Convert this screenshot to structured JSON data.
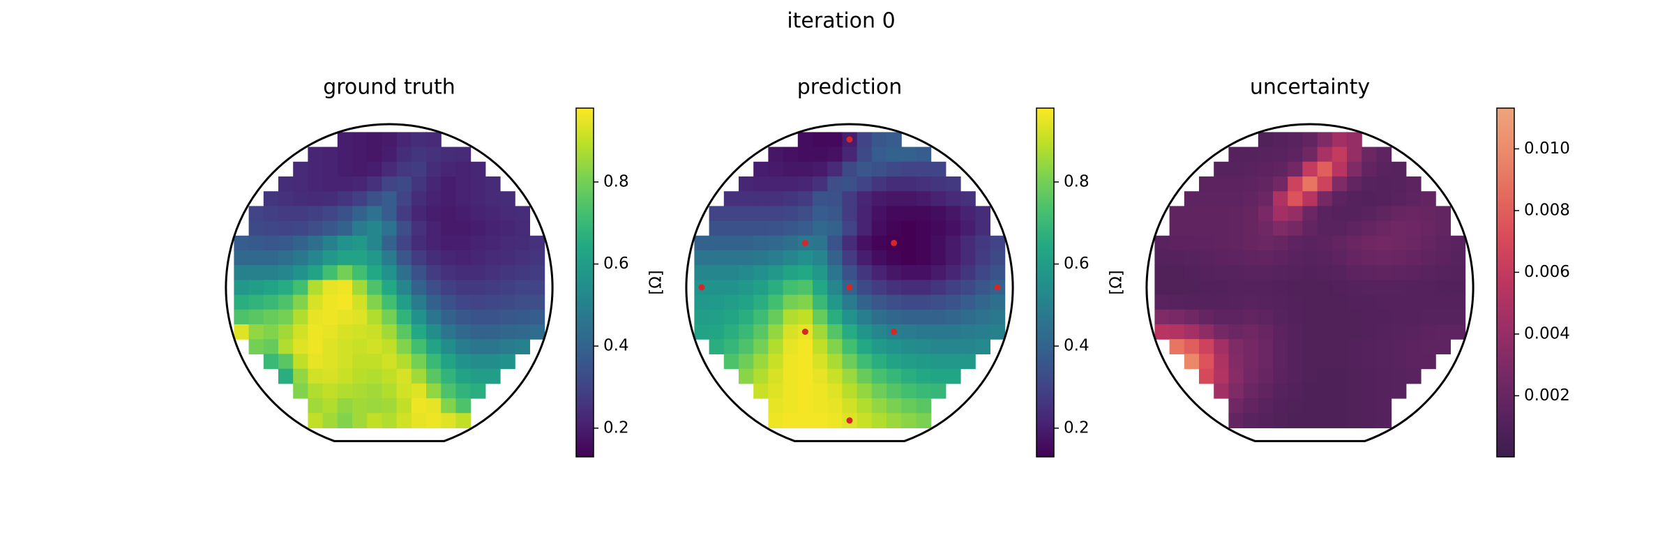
{
  "title": "iteration 0",
  "chart_data": [
    {
      "type": "heatmap",
      "title": "ground truth",
      "colorbar_label": "[Ω]",
      "colormap": [
        "#440154",
        "#482475",
        "#414487",
        "#355f8d",
        "#2a788e",
        "#21918c",
        "#22a884",
        "#44bf70",
        "#7ad151",
        "#bddf26",
        "#fde725"
      ],
      "clim": [
        0.13,
        0.98
      ],
      "cticks": [
        0.2,
        0.4,
        0.6,
        0.8
      ],
      "values": [
        [
          0.2,
          0.19,
          0.18,
          0.19,
          0.22,
          0.24,
          0.23
        ],
        [
          0.22,
          0.21,
          0.2,
          0.19,
          0.18,
          0.2,
          0.24,
          0.26,
          0.25,
          0.24,
          0.23
        ],
        [
          0.23,
          0.22,
          0.21,
          0.2,
          0.19,
          0.2,
          0.23,
          0.27,
          0.28,
          0.24,
          0.22,
          0.21,
          0.22
        ],
        [
          0.24,
          0.23,
          0.22,
          0.21,
          0.21,
          0.22,
          0.25,
          0.3,
          0.32,
          0.26,
          0.22,
          0.2,
          0.21,
          0.22,
          0.23
        ],
        [
          0.26,
          0.25,
          0.24,
          0.23,
          0.24,
          0.26,
          0.29,
          0.34,
          0.38,
          0.3,
          0.24,
          0.21,
          0.2,
          0.21,
          0.22,
          0.23,
          0.24
        ],
        [
          0.3,
          0.29,
          0.28,
          0.28,
          0.29,
          0.31,
          0.34,
          0.4,
          0.45,
          0.38,
          0.28,
          0.22,
          0.2,
          0.19,
          0.2,
          0.21,
          0.22,
          0.23,
          0.24
        ],
        [
          0.32,
          0.31,
          0.3,
          0.31,
          0.33,
          0.36,
          0.4,
          0.48,
          0.52,
          0.45,
          0.33,
          0.25,
          0.21,
          0.19,
          0.19,
          0.2,
          0.21,
          0.22,
          0.23
        ],
        [
          0.38,
          0.37,
          0.36,
          0.37,
          0.4,
          0.44,
          0.5,
          0.56,
          0.58,
          0.52,
          0.4,
          0.3,
          0.24,
          0.21,
          0.2,
          0.2,
          0.21,
          0.22,
          0.23,
          0.24,
          0.25
        ],
        [
          0.42,
          0.42,
          0.42,
          0.44,
          0.47,
          0.52,
          0.58,
          0.62,
          0.62,
          0.58,
          0.48,
          0.36,
          0.28,
          0.24,
          0.22,
          0.21,
          0.22,
          0.23,
          0.24,
          0.25,
          0.26
        ],
        [
          0.5,
          0.5,
          0.5,
          0.52,
          0.56,
          0.62,
          0.72,
          0.8,
          0.72,
          0.64,
          0.56,
          0.44,
          0.34,
          0.28,
          0.25,
          0.24,
          0.24,
          0.25,
          0.26,
          0.27,
          0.28
        ],
        [
          0.58,
          0.6,
          0.62,
          0.65,
          0.72,
          0.88,
          0.95,
          0.96,
          0.86,
          0.74,
          0.64,
          0.52,
          0.4,
          0.33,
          0.29,
          0.27,
          0.27,
          0.28,
          0.29,
          0.3,
          0.3
        ],
        [
          0.66,
          0.68,
          0.7,
          0.74,
          0.82,
          0.93,
          0.96,
          0.97,
          0.92,
          0.82,
          0.72,
          0.6,
          0.48,
          0.39,
          0.34,
          0.31,
          0.3,
          0.31,
          0.32,
          0.33,
          0.33
        ],
        [
          0.74,
          0.76,
          0.78,
          0.8,
          0.88,
          0.95,
          0.96,
          0.95,
          0.94,
          0.88,
          0.8,
          0.68,
          0.56,
          0.46,
          0.4,
          0.36,
          0.35,
          0.35,
          0.36,
          0.37,
          0.38
        ],
        [
          0.94,
          0.84,
          0.82,
          0.86,
          0.92,
          0.96,
          0.95,
          0.93,
          0.92,
          0.91,
          0.86,
          0.76,
          0.64,
          0.54,
          0.46,
          0.42,
          0.4,
          0.4,
          0.41,
          0.42,
          0.43
        ],
        [
          0.8,
          0.78,
          0.88,
          0.94,
          0.96,
          0.94,
          0.92,
          0.91,
          0.92,
          0.9,
          0.82,
          0.72,
          0.62,
          0.54,
          0.48,
          0.46,
          0.46,
          0.48,
          0.5
        ],
        [
          0.7,
          0.76,
          0.9,
          0.95,
          0.94,
          0.92,
          0.9,
          0.9,
          0.92,
          0.88,
          0.8,
          0.7,
          0.62,
          0.56,
          0.54,
          0.54,
          0.56
        ],
        [
          0.66,
          0.84,
          0.92,
          0.93,
          0.91,
          0.89,
          0.88,
          0.9,
          0.93,
          0.86,
          0.76,
          0.68,
          0.62,
          0.6,
          0.6
        ],
        [
          0.82,
          0.88,
          0.9,
          0.88,
          0.87,
          0.86,
          0.88,
          0.92,
          0.94,
          0.84,
          0.74,
          0.68,
          0.66
        ],
        [
          0.86,
          0.88,
          0.84,
          0.86,
          0.85,
          0.86,
          0.9,
          0.96,
          0.95,
          0.82,
          0.74
        ],
        [
          0.9,
          0.86,
          0.82,
          0.86,
          0.9,
          0.88,
          0.92,
          0.95,
          0.96,
          0.94,
          0.9
        ]
      ]
    },
    {
      "type": "heatmap",
      "title": "prediction",
      "colorbar_label": "[Ω]",
      "colormap": [
        "#440154",
        "#482475",
        "#414487",
        "#355f8d",
        "#2a788e",
        "#21918c",
        "#22a884",
        "#44bf70",
        "#7ad151",
        "#bddf26",
        "#fde725"
      ],
      "clim": [
        0.13,
        0.98
      ],
      "cticks": [
        0.2,
        0.4,
        0.6,
        0.8
      ],
      "samples": {
        "x": [
          0,
          -3,
          3,
          -10,
          0,
          10,
          -3,
          3,
          0
        ],
        "y": [
          10,
          3,
          3,
          0,
          0,
          0,
          -3,
          -3,
          -9
        ],
        "color": "#d62728"
      },
      "values": [
        [
          0.16,
          0.15,
          0.15,
          0.2,
          0.3,
          0.36,
          0.38
        ],
        [
          0.18,
          0.17,
          0.16,
          0.16,
          0.17,
          0.22,
          0.32,
          0.38,
          0.4,
          0.4,
          0.38
        ],
        [
          0.2,
          0.19,
          0.18,
          0.18,
          0.19,
          0.23,
          0.32,
          0.36,
          0.34,
          0.32,
          0.3,
          0.3,
          0.3
        ],
        [
          0.22,
          0.21,
          0.21,
          0.21,
          0.22,
          0.25,
          0.33,
          0.34,
          0.3,
          0.26,
          0.24,
          0.24,
          0.25,
          0.26,
          0.27
        ],
        [
          0.25,
          0.25,
          0.25,
          0.25,
          0.26,
          0.28,
          0.35,
          0.34,
          0.28,
          0.22,
          0.19,
          0.18,
          0.18,
          0.19,
          0.21,
          0.23,
          0.25
        ],
        [
          0.3,
          0.3,
          0.3,
          0.3,
          0.3,
          0.31,
          0.33,
          0.38,
          0.36,
          0.28,
          0.21,
          0.17,
          0.15,
          0.15,
          0.15,
          0.16,
          0.18,
          0.21,
          0.24
        ],
        [
          0.34,
          0.34,
          0.34,
          0.34,
          0.35,
          0.36,
          0.38,
          0.42,
          0.4,
          0.3,
          0.21,
          0.16,
          0.14,
          0.13,
          0.14,
          0.15,
          0.17,
          0.2,
          0.24
        ],
        [
          0.4,
          0.4,
          0.4,
          0.4,
          0.41,
          0.42,
          0.44,
          0.47,
          0.46,
          0.35,
          0.24,
          0.17,
          0.14,
          0.13,
          0.13,
          0.14,
          0.16,
          0.19,
          0.23,
          0.27,
          0.3
        ],
        [
          0.46,
          0.46,
          0.46,
          0.46,
          0.47,
          0.49,
          0.52,
          0.55,
          0.52,
          0.4,
          0.28,
          0.2,
          0.16,
          0.14,
          0.13,
          0.14,
          0.16,
          0.19,
          0.23,
          0.28,
          0.32
        ],
        [
          0.52,
          0.52,
          0.52,
          0.53,
          0.55,
          0.58,
          0.62,
          0.64,
          0.58,
          0.46,
          0.34,
          0.26,
          0.21,
          0.18,
          0.17,
          0.17,
          0.19,
          0.22,
          0.26,
          0.31,
          0.35
        ],
        [
          0.56,
          0.56,
          0.56,
          0.58,
          0.61,
          0.66,
          0.72,
          0.74,
          0.64,
          0.52,
          0.4,
          0.32,
          0.28,
          0.25,
          0.24,
          0.24,
          0.26,
          0.29,
          0.32,
          0.36,
          0.4
        ],
        [
          0.58,
          0.59,
          0.6,
          0.62,
          0.66,
          0.72,
          0.8,
          0.82,
          0.7,
          0.58,
          0.48,
          0.4,
          0.36,
          0.33,
          0.32,
          0.32,
          0.33,
          0.35,
          0.38,
          0.41,
          0.44
        ],
        [
          0.6,
          0.61,
          0.63,
          0.66,
          0.71,
          0.78,
          0.88,
          0.9,
          0.78,
          0.66,
          0.56,
          0.49,
          0.44,
          0.41,
          0.4,
          0.4,
          0.4,
          0.41,
          0.43,
          0.45,
          0.47
        ],
        [
          0.62,
          0.63,
          0.66,
          0.7,
          0.76,
          0.84,
          0.93,
          0.95,
          0.86,
          0.75,
          0.65,
          0.57,
          0.52,
          0.49,
          0.48,
          0.47,
          0.47,
          0.47,
          0.48,
          0.49,
          0.5
        ],
        [
          0.66,
          0.69,
          0.74,
          0.8,
          0.88,
          0.95,
          0.97,
          0.9,
          0.82,
          0.72,
          0.64,
          0.59,
          0.56,
          0.54,
          0.53,
          0.52,
          0.52,
          0.52,
          0.53
        ],
        [
          0.74,
          0.79,
          0.85,
          0.91,
          0.96,
          0.97,
          0.93,
          0.87,
          0.79,
          0.71,
          0.66,
          0.62,
          0.6,
          0.59,
          0.58,
          0.58,
          0.58
        ],
        [
          0.83,
          0.88,
          0.93,
          0.96,
          0.97,
          0.95,
          0.91,
          0.85,
          0.78,
          0.73,
          0.69,
          0.66,
          0.64,
          0.63,
          0.63
        ],
        [
          0.91,
          0.94,
          0.96,
          0.97,
          0.96,
          0.94,
          0.89,
          0.84,
          0.79,
          0.75,
          0.72,
          0.7,
          0.69
        ],
        [
          0.95,
          0.96,
          0.97,
          0.96,
          0.95,
          0.92,
          0.88,
          0.84,
          0.81,
          0.78,
          0.76
        ],
        [
          0.96,
          0.97,
          0.97,
          0.97,
          0.96,
          0.94,
          0.91,
          0.88,
          0.85,
          0.83,
          0.81
        ]
      ]
    },
    {
      "type": "heatmap",
      "title": "uncertainty",
      "colormap": [
        "#3c1e4e",
        "#5a2360",
        "#7a2a66",
        "#9c2f66",
        "#bd3660",
        "#d84a5a",
        "#e46a5e",
        "#eb8a6a",
        "#eda57d"
      ],
      "clim": [
        2e-05,
        0.01132
      ],
      "cticks": [
        0.002,
        0.004,
        0.006,
        0.008,
        {
          "value": 0.01,
          "label": "0.010"
        }
      ],
      "values": [
        [
          0.001,
          0.0012,
          0.0014,
          0.0018,
          0.003,
          0.0045,
          0.004
        ],
        [
          0.0012,
          0.0012,
          0.0013,
          0.0014,
          0.0016,
          0.0024,
          0.0048,
          0.006,
          0.004,
          0.0022,
          0.0016
        ],
        [
          0.0013,
          0.0013,
          0.0014,
          0.0015,
          0.0017,
          0.0025,
          0.006,
          0.008,
          0.0055,
          0.003,
          0.0018,
          0.0014,
          0.0013
        ],
        [
          0.0015,
          0.0015,
          0.0015,
          0.0016,
          0.0018,
          0.0025,
          0.0065,
          0.009,
          0.0065,
          0.003,
          0.0018,
          0.0013,
          0.0012,
          0.0013,
          0.0015
        ],
        [
          0.0016,
          0.0016,
          0.0016,
          0.0016,
          0.0018,
          0.0022,
          0.005,
          0.0075,
          0.0055,
          0.0026,
          0.0015,
          0.0012,
          0.0011,
          0.0012,
          0.0014,
          0.0016,
          0.0018
        ],
        [
          0.0017,
          0.0017,
          0.0017,
          0.0017,
          0.0018,
          0.002,
          0.0028,
          0.0045,
          0.004,
          0.0022,
          0.0014,
          0.0012,
          0.0012,
          0.0014,
          0.0017,
          0.002,
          0.0021,
          0.002,
          0.0018
        ],
        [
          0.0017,
          0.0017,
          0.0017,
          0.0017,
          0.0018,
          0.002,
          0.0024,
          0.003,
          0.0026,
          0.0018,
          0.0014,
          0.0014,
          0.0016,
          0.0019,
          0.0022,
          0.0024,
          0.0023,
          0.0021,
          0.0018
        ],
        [
          0.0014,
          0.0015,
          0.0015,
          0.0016,
          0.0017,
          0.0018,
          0.002,
          0.0022,
          0.002,
          0.0016,
          0.0014,
          0.0015,
          0.0018,
          0.0021,
          0.0024,
          0.0025,
          0.0024,
          0.0022,
          0.0019,
          0.0016,
          0.0014
        ],
        [
          0.0012,
          0.0012,
          0.0013,
          0.0014,
          0.0015,
          0.0016,
          0.0017,
          0.0018,
          0.0016,
          0.0014,
          0.0013,
          0.0014,
          0.0016,
          0.0019,
          0.0021,
          0.0022,
          0.0021,
          0.0019,
          0.0017,
          0.0015,
          0.0013
        ],
        [
          0.001,
          0.001,
          0.0011,
          0.0012,
          0.0013,
          0.0013,
          0.0014,
          0.0014,
          0.0013,
          0.0012,
          0.0011,
          0.0012,
          0.0013,
          0.0015,
          0.0016,
          0.0017,
          0.0016,
          0.0015,
          0.0014,
          0.0013,
          0.0012
        ],
        [
          0.001,
          0.001,
          0.001,
          0.0011,
          0.0011,
          0.0012,
          0.0012,
          0.0012,
          0.0011,
          0.001,
          0.001,
          0.001,
          0.0011,
          0.0012,
          0.0013,
          0.0013,
          0.0013,
          0.0012,
          0.0012,
          0.0011,
          0.0011
        ],
        [
          0.0014,
          0.0013,
          0.0012,
          0.0012,
          0.0012,
          0.0013,
          0.0014,
          0.0013,
          0.0012,
          0.0011,
          0.001,
          0.001,
          0.001,
          0.0011,
          0.0011,
          0.0012,
          0.0012,
          0.0012,
          0.0012,
          0.0012,
          0.0012
        ],
        [
          0.003,
          0.0028,
          0.0024,
          0.0019,
          0.0016,
          0.0016,
          0.0018,
          0.0016,
          0.0013,
          0.0011,
          0.001,
          0.001,
          0.001,
          0.001,
          0.0011,
          0.0011,
          0.0012,
          0.0012,
          0.0013,
          0.0013,
          0.0013
        ],
        [
          0.0055,
          0.0052,
          0.0046,
          0.0036,
          0.0026,
          0.0022,
          0.0024,
          0.002,
          0.0015,
          0.0012,
          0.001,
          0.001,
          0.001,
          0.001,
          0.0011,
          0.0012,
          0.0013,
          0.0014,
          0.0015,
          0.0016,
          0.0016
        ],
        [
          0.009,
          0.008,
          0.0065,
          0.0045,
          0.003,
          0.0026,
          0.0022,
          0.0016,
          0.0012,
          0.001,
          0.001,
          0.001,
          0.0011,
          0.0012,
          0.0013,
          0.0014,
          0.0015,
          0.0016,
          0.0016
        ],
        [
          0.0098,
          0.0075,
          0.005,
          0.0032,
          0.0026,
          0.0022,
          0.0016,
          0.0012,
          0.001,
          0.001,
          0.001,
          0.0011,
          0.0012,
          0.0013,
          0.0014,
          0.0015,
          0.0015
        ],
        [
          0.007,
          0.0052,
          0.0034,
          0.0025,
          0.002,
          0.0015,
          0.0012,
          0.001,
          0.0009,
          0.0009,
          0.001,
          0.0011,
          0.0012,
          0.0013,
          0.0014
        ],
        [
          0.0045,
          0.003,
          0.0022,
          0.0017,
          0.0013,
          0.0011,
          0.0009,
          0.0009,
          0.0009,
          0.001,
          0.0011,
          0.0012,
          0.0013
        ],
        [
          0.0024,
          0.0018,
          0.0014,
          0.0011,
          0.001,
          0.0009,
          0.0009,
          0.0009,
          0.001,
          0.0011,
          0.0012
        ],
        [
          0.0018,
          0.0014,
          0.0012,
          0.001,
          0.0009,
          0.0009,
          0.0009,
          0.0009,
          0.001,
          0.0011,
          0.0012
        ]
      ]
    }
  ]
}
